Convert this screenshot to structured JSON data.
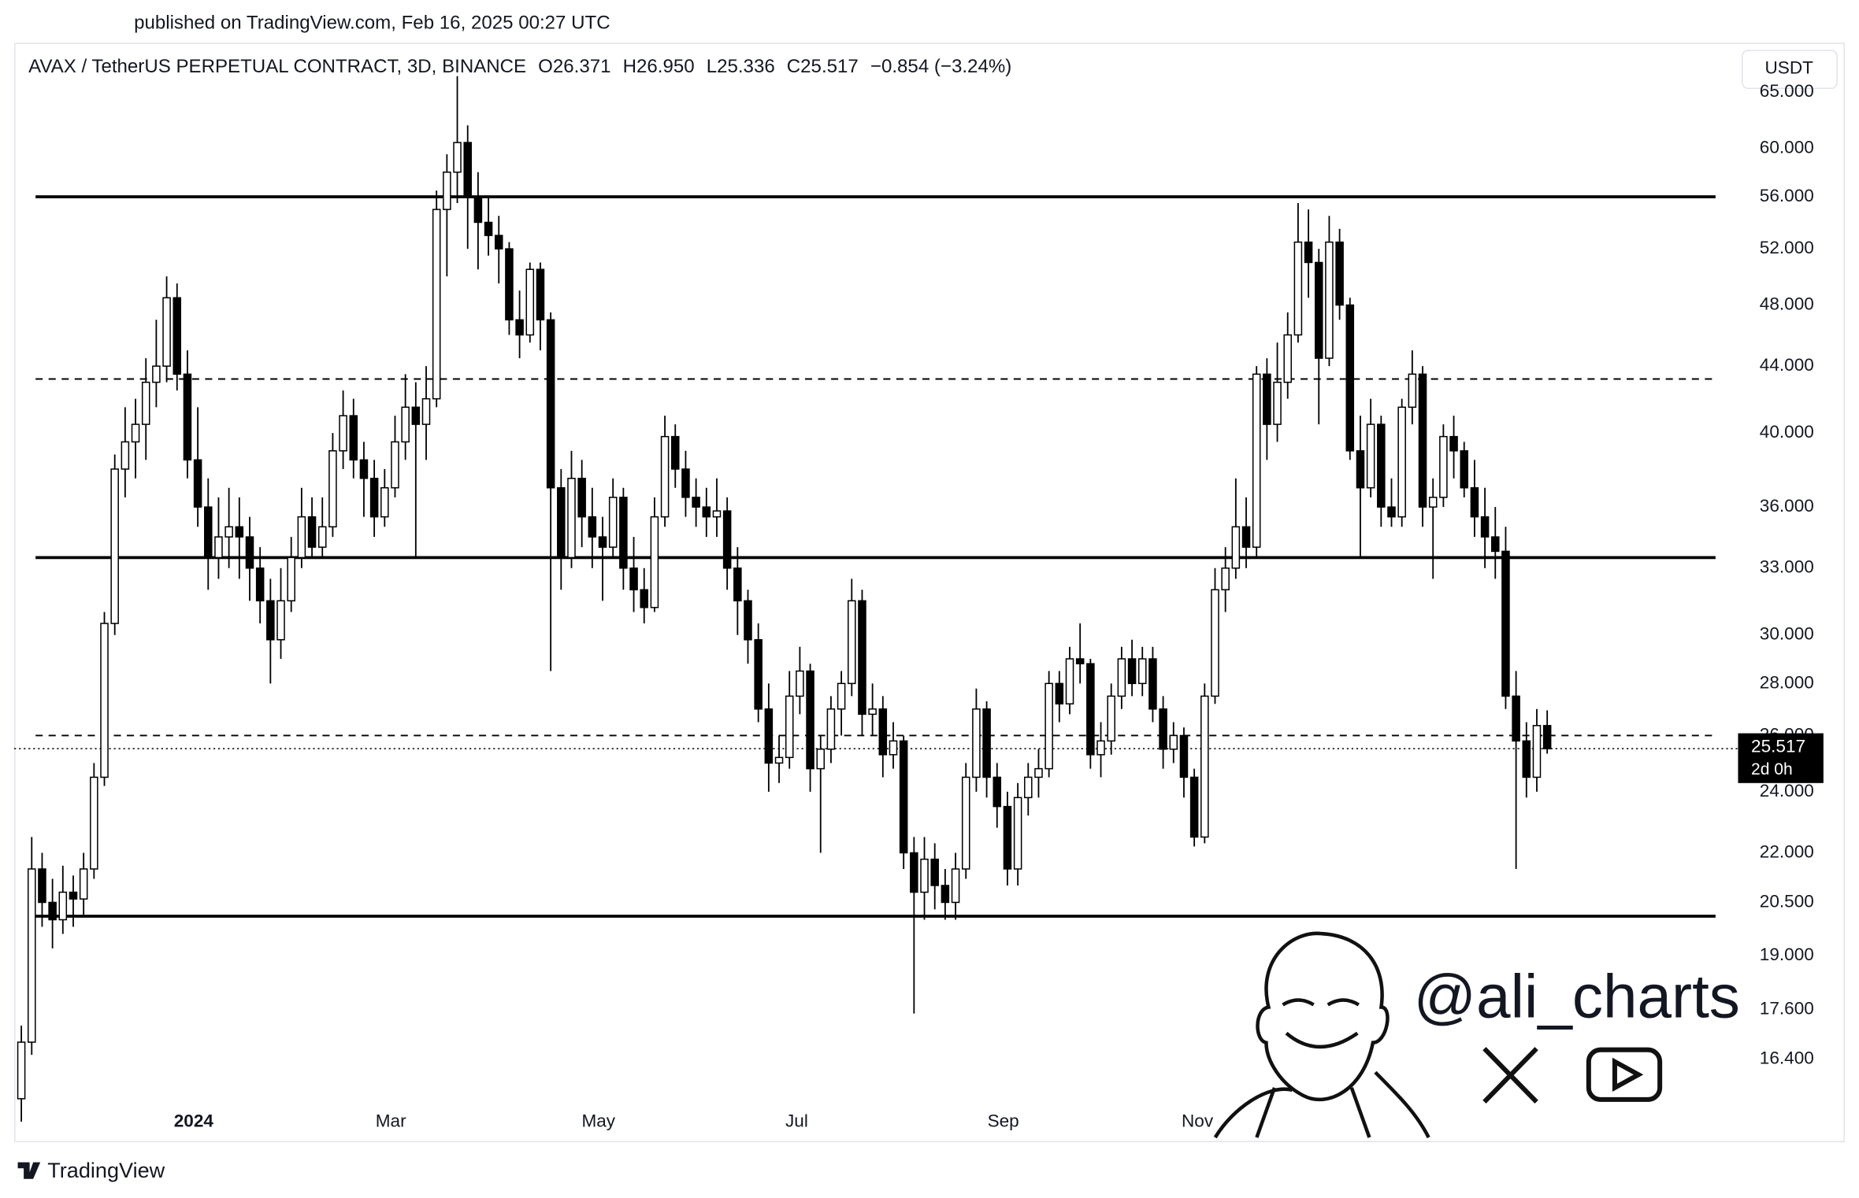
{
  "chart_data": {
    "type": "candlestick",
    "published": "published on TradingView.com, Feb 16, 2025 00:27 UTC",
    "legend": [
      "AVAX / TetherUS PERPETUAL CONTRACT, 3D, BINANCE",
      "O26.371",
      "H26.950",
      "L25.336",
      "C25.517",
      "−0.854 (−3.24%)"
    ],
    "currency": "USDT",
    "price_label": "25.517",
    "price_value": 25.517,
    "countdown": "2d 0h",
    "watermark": "@ali_charts",
    "brand": "TradingView",
    "log_scale": true,
    "grid": false,
    "up_color": "#ffffff",
    "down_color": "#000000",
    "ylim": [
      15.3,
      69.5
    ],
    "yticks": [
      {
        "value": 16.4,
        "label": "16.400"
      },
      {
        "value": 17.6,
        "label": "17.600"
      },
      {
        "value": 19,
        "label": "19.000"
      },
      {
        "value": 20.5,
        "label": "20.500"
      },
      {
        "value": 22,
        "label": "22.000"
      },
      {
        "value": 24,
        "label": "24.000"
      },
      {
        "value": 26,
        "label": "26.000"
      },
      {
        "value": 28,
        "label": "28.000"
      },
      {
        "value": 30,
        "label": "30.000"
      },
      {
        "value": 33,
        "label": "33.000"
      },
      {
        "value": 36,
        "label": "36.000"
      },
      {
        "value": 40,
        "label": "40.000"
      },
      {
        "value": 44,
        "label": "44.000"
      },
      {
        "value": 48,
        "label": "48.000"
      },
      {
        "value": 52,
        "label": "52.000"
      },
      {
        "value": 56,
        "label": "56.000"
      },
      {
        "value": 60,
        "label": "60.000"
      },
      {
        "value": 65,
        "label": "65.000"
      }
    ],
    "xlim": [
      -0.5,
      147.5
    ],
    "xticks": [
      {
        "value": 16.6,
        "label": "2024"
      },
      {
        "value": 35.6,
        "label": "Mar"
      },
      {
        "value": 55.6,
        "label": "May"
      },
      {
        "value": 74.7,
        "label": "Jul"
      },
      {
        "value": 94.6,
        "label": "Sep"
      },
      {
        "value": 113.3,
        "label": "Nov"
      }
    ],
    "levels": [
      {
        "value": 56.0,
        "style": "solid"
      },
      {
        "value": 43.2,
        "style": "dashed"
      },
      {
        "value": 33.5,
        "style": "solid"
      },
      {
        "value": 26.0,
        "style": "dashed"
      },
      {
        "value": 20.1,
        "style": "solid"
      }
    ],
    "ohlc": [
      [
        15.5,
        17.2,
        15.0,
        16.8
      ],
      [
        16.8,
        22.5,
        16.5,
        21.5
      ],
      [
        21.5,
        22.0,
        19.8,
        20.5
      ],
      [
        20.5,
        21.2,
        19.2,
        20.0
      ],
      [
        20.0,
        21.6,
        19.6,
        20.8
      ],
      [
        20.8,
        21.3,
        19.8,
        20.6
      ],
      [
        20.6,
        22.0,
        20.1,
        21.5
      ],
      [
        21.5,
        25.0,
        21.2,
        24.5
      ],
      [
        24.5,
        31.0,
        24.2,
        30.5
      ],
      [
        30.5,
        38.8,
        30.0,
        38.0
      ],
      [
        38.0,
        41.5,
        36.5,
        39.5
      ],
      [
        39.5,
        42.0,
        37.5,
        40.5
      ],
      [
        40.5,
        44.5,
        38.5,
        43.0
      ],
      [
        43.0,
        47.0,
        41.5,
        44.0
      ],
      [
        44.0,
        50.0,
        43.0,
        48.5
      ],
      [
        48.5,
        49.5,
        42.5,
        43.5
      ],
      [
        43.5,
        45.0,
        37.5,
        38.5
      ],
      [
        38.5,
        41.5,
        35.0,
        36.0
      ],
      [
        36.0,
        37.5,
        32.0,
        33.5
      ],
      [
        33.5,
        36.5,
        32.5,
        34.5
      ],
      [
        34.5,
        37.0,
        33.0,
        35.0
      ],
      [
        35.0,
        36.5,
        32.5,
        34.5
      ],
      [
        34.5,
        35.5,
        31.5,
        33.0
      ],
      [
        33.0,
        34.0,
        30.5,
        31.5
      ],
      [
        31.5,
        32.5,
        28.0,
        29.8
      ],
      [
        29.8,
        33.0,
        29.0,
        31.5
      ],
      [
        31.5,
        34.5,
        31.0,
        33.5
      ],
      [
        33.5,
        37.0,
        33.0,
        35.5
      ],
      [
        35.5,
        36.5,
        33.5,
        34.0
      ],
      [
        34.0,
        36.5,
        33.5,
        35.0
      ],
      [
        35.0,
        40.0,
        34.5,
        39.0
      ],
      [
        39.0,
        42.5,
        38.0,
        41.0
      ],
      [
        41.0,
        42.0,
        37.5,
        38.5
      ],
      [
        38.5,
        39.5,
        35.5,
        37.5
      ],
      [
        37.5,
        38.5,
        34.5,
        35.5
      ],
      [
        35.5,
        38.0,
        35.0,
        37.0
      ],
      [
        37.0,
        41.0,
        36.5,
        39.5
      ],
      [
        39.5,
        43.5,
        38.5,
        41.5
      ],
      [
        41.5,
        43.0,
        33.5,
        40.5
      ],
      [
        40.5,
        44.0,
        38.5,
        42.0
      ],
      [
        42.0,
        56.5,
        41.5,
        55.0
      ],
      [
        55.0,
        59.5,
        50.0,
        58.0
      ],
      [
        58.0,
        66.5,
        55.5,
        60.5
      ],
      [
        60.5,
        62.0,
        52.0,
        56.0
      ],
      [
        56.0,
        58.0,
        50.5,
        54.0
      ],
      [
        54.0,
        56.0,
        51.5,
        53.0
      ],
      [
        53.0,
        54.5,
        49.5,
        52.0
      ],
      [
        52.0,
        52.5,
        46.0,
        47.0
      ],
      [
        47.0,
        49.0,
        44.5,
        46.0
      ],
      [
        46.0,
        51.0,
        45.5,
        50.5
      ],
      [
        50.5,
        51.0,
        45.0,
        47.0
      ],
      [
        47.0,
        47.5,
        28.5,
        37.0
      ],
      [
        37.0,
        38.0,
        32.0,
        33.5
      ],
      [
        33.5,
        39.0,
        33.0,
        37.5
      ],
      [
        37.5,
        38.5,
        34.0,
        35.5
      ],
      [
        35.5,
        37.0,
        33.0,
        34.5
      ],
      [
        34.5,
        35.5,
        31.5,
        34.0
      ],
      [
        34.0,
        37.5,
        33.5,
        36.5
      ],
      [
        36.5,
        37.0,
        32.0,
        33.0
      ],
      [
        33.0,
        34.5,
        31.0,
        32.0
      ],
      [
        32.0,
        33.0,
        30.5,
        31.2
      ],
      [
        31.2,
        36.5,
        31.0,
        35.5
      ],
      [
        35.5,
        41.0,
        35.0,
        39.8
      ],
      [
        39.8,
        40.5,
        37.0,
        38.0
      ],
      [
        38.0,
        39.0,
        35.5,
        36.5
      ],
      [
        36.5,
        37.5,
        35.0,
        36.0
      ],
      [
        36.0,
        37.0,
        34.5,
        35.5
      ],
      [
        35.5,
        37.5,
        34.5,
        35.8
      ],
      [
        35.8,
        36.5,
        32.0,
        33.0
      ],
      [
        33.0,
        34.0,
        30.0,
        31.5
      ],
      [
        31.5,
        32.0,
        28.8,
        29.8
      ],
      [
        29.8,
        30.5,
        26.5,
        27.0
      ],
      [
        27.0,
        28.0,
        24.0,
        25.0
      ],
      [
        25.0,
        26.0,
        24.3,
        25.2
      ],
      [
        25.2,
        28.5,
        24.8,
        27.5
      ],
      [
        27.5,
        29.5,
        26.8,
        28.5
      ],
      [
        28.5,
        28.8,
        24.0,
        24.8
      ],
      [
        24.8,
        26.0,
        22.0,
        25.5
      ],
      [
        25.5,
        27.5,
        25.0,
        27.0
      ],
      [
        27.0,
        28.5,
        26.0,
        28.0
      ],
      [
        28.0,
        32.5,
        27.5,
        31.5
      ],
      [
        31.5,
        32.0,
        26.0,
        26.8
      ],
      [
        26.8,
        28.0,
        26.0,
        27.0
      ],
      [
        27.0,
        27.5,
        24.5,
        25.3
      ],
      [
        25.3,
        26.5,
        24.8,
        25.8
      ],
      [
        25.8,
        26.0,
        21.5,
        22.0
      ],
      [
        22.0,
        22.5,
        17.5,
        20.8
      ],
      [
        20.8,
        22.5,
        20.0,
        21.8
      ],
      [
        21.8,
        22.3,
        20.3,
        21.0
      ],
      [
        21.0,
        21.5,
        20.0,
        20.5
      ],
      [
        20.5,
        22.0,
        20.0,
        21.5
      ],
      [
        21.5,
        25.0,
        21.2,
        24.5
      ],
      [
        24.5,
        27.8,
        24.0,
        27.0
      ],
      [
        27.0,
        27.3,
        23.8,
        24.5
      ],
      [
        24.5,
        25.0,
        22.8,
        23.5
      ],
      [
        23.5,
        24.0,
        21.0,
        21.5
      ],
      [
        21.5,
        24.3,
        21.0,
        23.8
      ],
      [
        23.8,
        25.0,
        23.2,
        24.5
      ],
      [
        24.5,
        25.5,
        23.8,
        24.8
      ],
      [
        24.8,
        28.5,
        24.5,
        28.0
      ],
      [
        28.0,
        28.5,
        26.5,
        27.2
      ],
      [
        27.2,
        29.5,
        26.8,
        29.0
      ],
      [
        29.0,
        30.5,
        28.0,
        28.8
      ],
      [
        28.8,
        29.0,
        24.8,
        25.3
      ],
      [
        25.3,
        26.5,
        24.5,
        25.8
      ],
      [
        25.8,
        28.0,
        25.3,
        27.5
      ],
      [
        27.5,
        29.5,
        27.0,
        29.0
      ],
      [
        29.0,
        29.8,
        27.5,
        28.0
      ],
      [
        28.0,
        29.5,
        27.5,
        29.0
      ],
      [
        29.0,
        29.5,
        26.5,
        27.0
      ],
      [
        27.0,
        27.5,
        24.8,
        25.5
      ],
      [
        25.5,
        26.5,
        25.0,
        26.0
      ],
      [
        26.0,
        26.3,
        23.8,
        24.5
      ],
      [
        24.5,
        24.8,
        22.2,
        22.5
      ],
      [
        22.5,
        28.0,
        22.3,
        27.5
      ],
      [
        27.5,
        33.0,
        27.2,
        32.0
      ],
      [
        32.0,
        34.0,
        31.0,
        33.0
      ],
      [
        33.0,
        37.5,
        32.5,
        35.0
      ],
      [
        35.0,
        36.5,
        33.0,
        34.0
      ],
      [
        34.0,
        44.0,
        33.5,
        43.5
      ],
      [
        43.5,
        44.5,
        38.5,
        40.5
      ],
      [
        40.5,
        45.5,
        39.5,
        43.0
      ],
      [
        43.0,
        47.5,
        42.0,
        46.0
      ],
      [
        46.0,
        55.5,
        45.5,
        52.5
      ],
      [
        52.5,
        55.0,
        48.5,
        51.0
      ],
      [
        51.0,
        52.0,
        40.5,
        44.5
      ],
      [
        44.5,
        54.5,
        44.0,
        52.5
      ],
      [
        52.5,
        53.5,
        47.0,
        48.0
      ],
      [
        48.0,
        48.5,
        38.5,
        39.0
      ],
      [
        39.0,
        41.0,
        33.5,
        37.0
      ],
      [
        37.0,
        42.0,
        36.5,
        40.5
      ],
      [
        40.5,
        41.0,
        35.0,
        36.0
      ],
      [
        36.0,
        37.5,
        35.0,
        35.5
      ],
      [
        35.5,
        42.0,
        35.0,
        41.5
      ],
      [
        41.5,
        45.0,
        40.5,
        43.5
      ],
      [
        43.5,
        44.0,
        35.0,
        36.0
      ],
      [
        36.0,
        37.5,
        32.5,
        36.5
      ],
      [
        36.5,
        40.5,
        36.0,
        39.8
      ],
      [
        39.8,
        41.0,
        37.5,
        39.0
      ],
      [
        39.0,
        39.5,
        36.5,
        37.0
      ],
      [
        37.0,
        38.5,
        34.5,
        35.5
      ],
      [
        35.5,
        37.0,
        33.0,
        34.5
      ],
      [
        34.5,
        36.0,
        32.5,
        33.8
      ],
      [
        33.8,
        35.0,
        27.0,
        27.5
      ],
      [
        27.5,
        28.5,
        21.5,
        25.8
      ],
      [
        25.8,
        26.5,
        23.8,
        24.5
      ],
      [
        24.5,
        27.0,
        24.0,
        26.371
      ],
      [
        26.371,
        26.95,
        25.336,
        25.517
      ]
    ]
  }
}
